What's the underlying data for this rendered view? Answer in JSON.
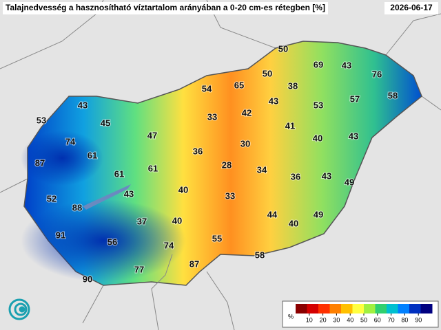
{
  "header": {
    "title": "Talajnedvesség a hasznosítható víztartalom arányában a 0-20 cm-es rétegben [%]",
    "date": "2026-06-17"
  },
  "labels": [
    50,
    69,
    43,
    76,
    50,
    54,
    65,
    38,
    43,
    53,
    57,
    58,
    43,
    42,
    33,
    41,
    53,
    45,
    47,
    40,
    43,
    74,
    30,
    61,
    36,
    87,
    28,
    34,
    61,
    61,
    36,
    43,
    49,
    40,
    52,
    43,
    33,
    88,
    44,
    49,
    37,
    40,
    40,
    91,
    55,
    56,
    74,
    58,
    87,
    77,
    90
  ],
  "colorbar": {
    "unit": "%",
    "range": [
      0,
      100
    ],
    "ticks": [
      10,
      20,
      30,
      40,
      50,
      60,
      70,
      80,
      90
    ],
    "colors": [
      "#8b0000",
      "#d40000",
      "#ff3000",
      "#ff8000",
      "#ffc000",
      "#ffff40",
      "#a0f040",
      "#30d070",
      "#00c0d0",
      "#0080ff",
      "#0030c0",
      "#000080"
    ]
  }
}
